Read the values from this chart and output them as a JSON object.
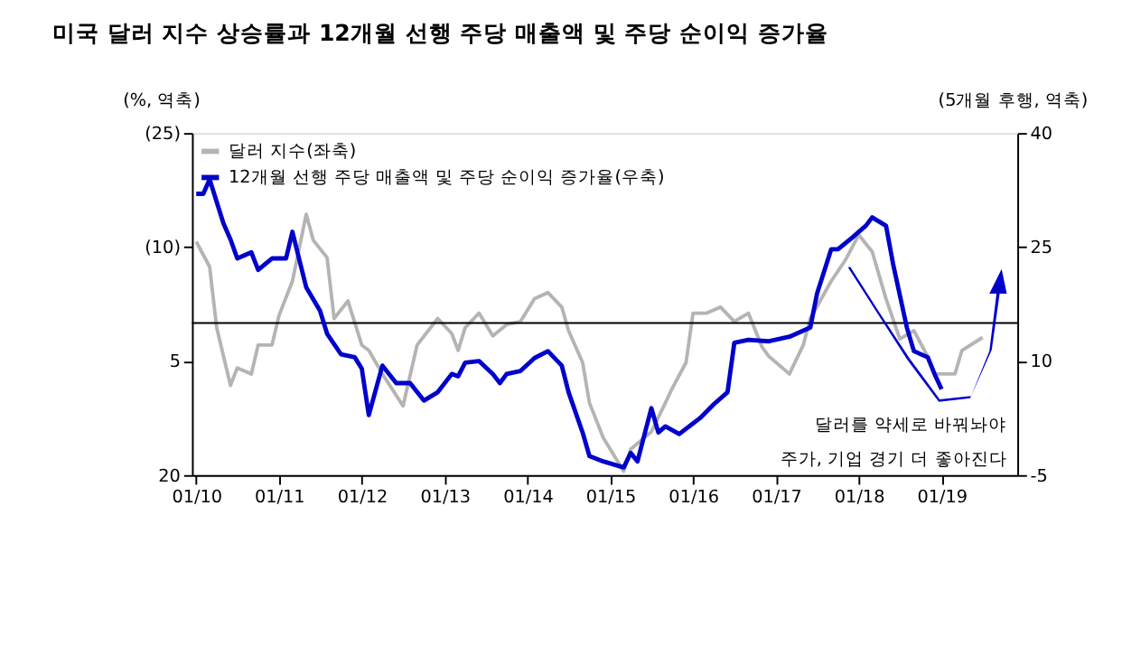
{
  "chart_data": {
    "type": "line",
    "title": "미국 달러 지수 상승률과 12개월 선행 주당 매출액 및 주당 순이익 증가율",
    "ylabel": "(%, 역축)",
    "y2label": "(5개월 후행, 역축)",
    "xlim": [
      "2009-12-13",
      "2019-12-01"
    ],
    "xticks": [
      {
        "value": "2010-01",
        "label": "01/10"
      },
      {
        "value": "2011-01",
        "label": "01/11"
      },
      {
        "value": "2012-01",
        "label": "01/12"
      },
      {
        "value": "2013-01",
        "label": "01/13"
      },
      {
        "value": "2014-01",
        "label": "01/14"
      },
      {
        "value": "2015-01",
        "label": "01/15"
      },
      {
        "value": "2016-01",
        "label": "01/16"
      },
      {
        "value": "2017-01",
        "label": "01/17"
      },
      {
        "value": "2018-01",
        "label": "01/18"
      },
      {
        "value": "2019-01",
        "label": "01/19"
      }
    ],
    "ylim": [
      20,
      -25
    ],
    "yticks": [
      {
        "value": -25,
        "label": "(25)"
      },
      {
        "value": -10,
        "label": "(10)"
      },
      5,
      20
    ],
    "y2lim": [
      -5,
      40
    ],
    "y2ticks": [
      -5,
      10,
      25,
      40
    ],
    "grid": false,
    "legend": "top left",
    "marker": "none",
    "line_style": "solid",
    "ref_lines": [
      {
        "axis": "y",
        "value": 0,
        "color": "#000000"
      }
    ],
    "annotations": [
      "달러를 약세로 바꿔놔야\n주가, 기업 경기 더 좋아진다"
    ],
    "series": [
      {
        "name": "달러 지수(좌축)",
        "color": "#b4b4b4",
        "axis": "y",
        "x": [
          "2010-01",
          "2010-03",
          "2010-04",
          "2010-06",
          "2010-07",
          "2010-09",
          "2010-10",
          "2010-12",
          "2011-01",
          "2011-03",
          "2011-05",
          "2011-06",
          "2011-08",
          "2011-09",
          "2011-11",
          "2012-01",
          "2012-02",
          "2012-04",
          "2012-07",
          "2012-09",
          "2012-12",
          "2013-02",
          "2013-03",
          "2013-04",
          "2013-06",
          "2013-08",
          "2013-10",
          "2013-12",
          "2014-02",
          "2014-04",
          "2014-06",
          "2014-07",
          "2014-09",
          "2014-10",
          "2014-12",
          "2015-03",
          "2015-04",
          "2015-07",
          "2015-09",
          "2015-10",
          "2015-12",
          "2016-01",
          "2016-03",
          "2016-05",
          "2016-07",
          "2016-09",
          "2016-11",
          "2016-12",
          "2017-03",
          "2017-05",
          "2017-06",
          "2017-09",
          "2017-11",
          "2018-01",
          "2018-03",
          "2018-05",
          "2018-07",
          "2018-09",
          "2018-11",
          "2018-12",
          "2019-03",
          "2019-04",
          "2019-07"
        ],
        "values": [
          -10.7,
          -7.4,
          0.6,
          8.2,
          5.9,
          6.7,
          2.9,
          2.9,
          -1.0,
          -5.5,
          -14.3,
          -10.9,
          -8.6,
          -0.6,
          -2.9,
          2.9,
          3.6,
          6.7,
          10.9,
          2.9,
          -0.6,
          1.4,
          3.6,
          0.6,
          -1.3,
          1.7,
          0.2,
          -0.2,
          -3.2,
          -4.0,
          -2.1,
          1.0,
          5.2,
          10.5,
          15.1,
          19.5,
          16.6,
          14.3,
          10.5,
          8.6,
          5.2,
          -1.3,
          -1.3,
          -2.1,
          -0.2,
          -1.3,
          3.2,
          4.4,
          6.7,
          2.9,
          -0.6,
          -5.5,
          -8.2,
          -11.6,
          -9.4,
          -3.2,
          2.1,
          1.0,
          4.4,
          6.7,
          6.7,
          3.6,
          1.9
        ]
      },
      {
        "name": "12개월 선행 주당 매출액 및 주당 순이익 증가율(우축)",
        "color": "#0000cc",
        "axis": "y2",
        "x": [
          "2010-01",
          "2010-02",
          "2010-03",
          "2010-05",
          "2010-06",
          "2010-07",
          "2010-09",
          "2010-10",
          "2010-12",
          "2011-02",
          "2011-03",
          "2011-05",
          "2011-07",
          "2011-08",
          "2011-10",
          "2011-12",
          "2012-01",
          "2012-02",
          "2012-04",
          "2012-06",
          "2012-08",
          "2012-10",
          "2012-12",
          "2013-02",
          "2013-03",
          "2013-04",
          "2013-06",
          "2013-08",
          "2013-09",
          "2013-10",
          "2013-12",
          "2014-02",
          "2014-04",
          "2014-06",
          "2014-07",
          "2014-09",
          "2014-10",
          "2014-12",
          "2015-03",
          "2015-04",
          "2015-05",
          "2015-07",
          "2015-08",
          "2015-09",
          "2015-11",
          "2016-02",
          "2016-04",
          "2016-06",
          "2016-07",
          "2016-09",
          "2016-12",
          "2017-03",
          "2017-06",
          "2017-07",
          "2017-09",
          "2017-10",
          "2017-12",
          "2018-02",
          "2018-03",
          "2018-05",
          "2018-06",
          "2018-08",
          "2018-09",
          "2018-11",
          "2018-12",
          "2019-01"
        ],
        "values": [
          32.0,
          32.0,
          33.9,
          28.1,
          26.0,
          23.5,
          24.3,
          22.0,
          23.5,
          23.5,
          27.0,
          19.7,
          16.6,
          13.6,
          10.9,
          10.5,
          9.0,
          2.9,
          9.4,
          7.1,
          7.1,
          4.8,
          5.9,
          8.3,
          8.0,
          9.8,
          10.0,
          8.3,
          7.1,
          8.3,
          8.7,
          10.4,
          11.3,
          9.4,
          5.9,
          0.6,
          -2.5,
          -3.2,
          -4.0,
          -2.1,
          -3.2,
          3.8,
          0.6,
          1.4,
          0.4,
          2.5,
          4.3,
          5.9,
          12.4,
          12.8,
          12.6,
          13.2,
          14.4,
          18.9,
          24.7,
          24.7,
          26.2,
          27.8,
          28.9,
          27.8,
          22.8,
          14.4,
          11.3,
          10.5,
          8.3,
          6.3
        ]
      }
    ]
  }
}
